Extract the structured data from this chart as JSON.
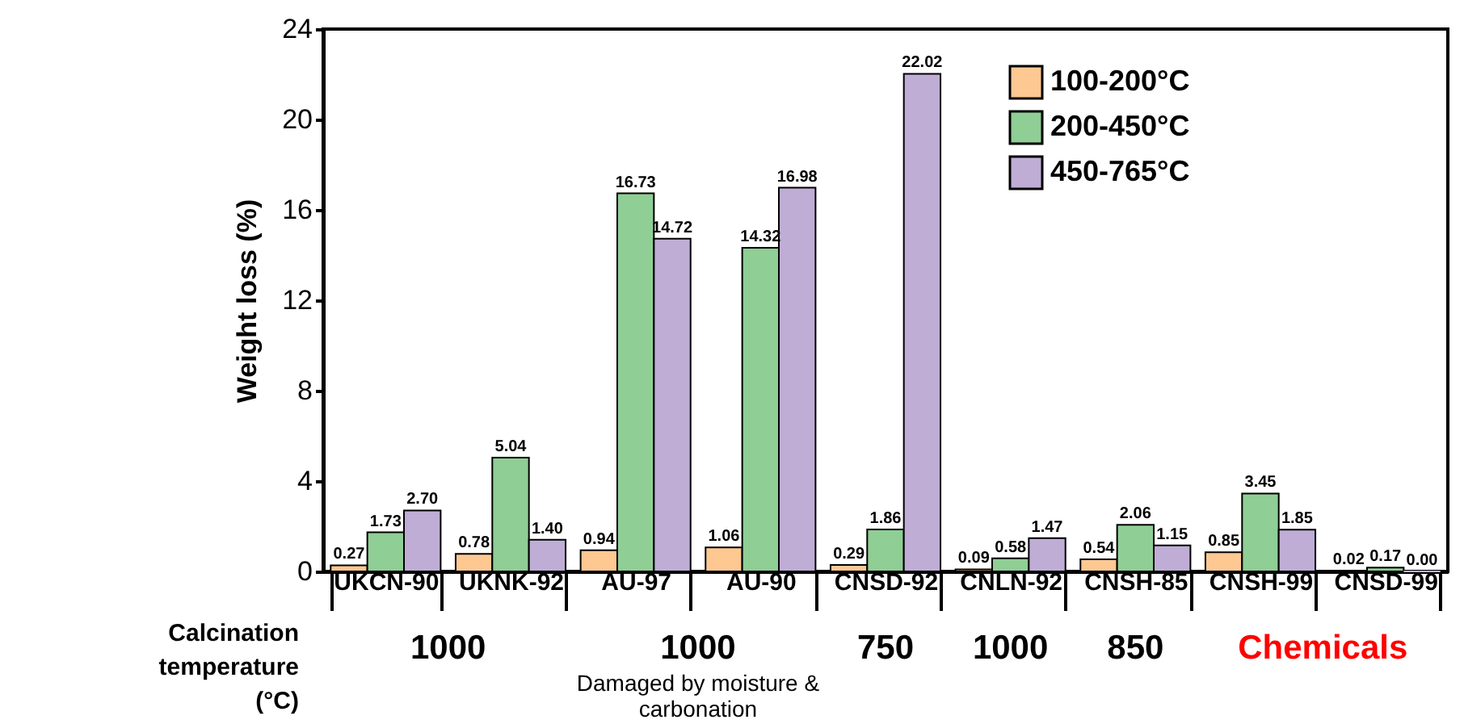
{
  "chart_data": {
    "type": "bar",
    "ylabel": "Weight loss (%)",
    "categories": [
      "UKCN-90",
      "UKNK-92",
      "AU-97",
      "AU-90",
      "CNSD-92",
      "CNLN-92",
      "CNSH-85",
      "CNSH-99",
      "CNSD-99"
    ],
    "series": [
      {
        "name": "100-200°C",
        "color": "#fdc892",
        "values": [
          0.27,
          0.78,
          0.94,
          1.06,
          0.29,
          0.09,
          0.54,
          0.85,
          0.02
        ],
        "value_labels": [
          "0.27",
          "0.78",
          "0.94",
          "1.06",
          "0.29",
          "0.09",
          "0.54",
          "0.85",
          "0.02"
        ]
      },
      {
        "name": "200-450°C",
        "color": "#8fce95",
        "values": [
          1.73,
          5.04,
          16.73,
          14.32,
          1.86,
          0.58,
          2.06,
          3.45,
          0.17
        ],
        "value_labels": [
          "1.73",
          "5.04",
          "16.73",
          "14.32",
          "1.86",
          "0.58",
          "2.06",
          "3.45",
          "0.17"
        ]
      },
      {
        "name": "450-765°C",
        "color": "#bfadd6",
        "values": [
          2.7,
          1.4,
          14.72,
          16.98,
          22.02,
          1.47,
          1.15,
          1.85,
          0.0
        ],
        "value_labels": [
          "2.70",
          "1.40",
          "14.72",
          "16.98",
          "22.02",
          "1.47",
          "1.15",
          "1.85",
          "0.00"
        ]
      }
    ],
    "ylim": [
      0,
      24
    ],
    "yticks": [
      0,
      4,
      8,
      12,
      16,
      20,
      24
    ],
    "grid": false,
    "legend": "top right",
    "annotations": [
      "Calcination temperature (°C)",
      "1000",
      "1000",
      "Damaged by moisture & carbonation",
      "750",
      "1000",
      "850",
      "Chemicals"
    ]
  }
}
